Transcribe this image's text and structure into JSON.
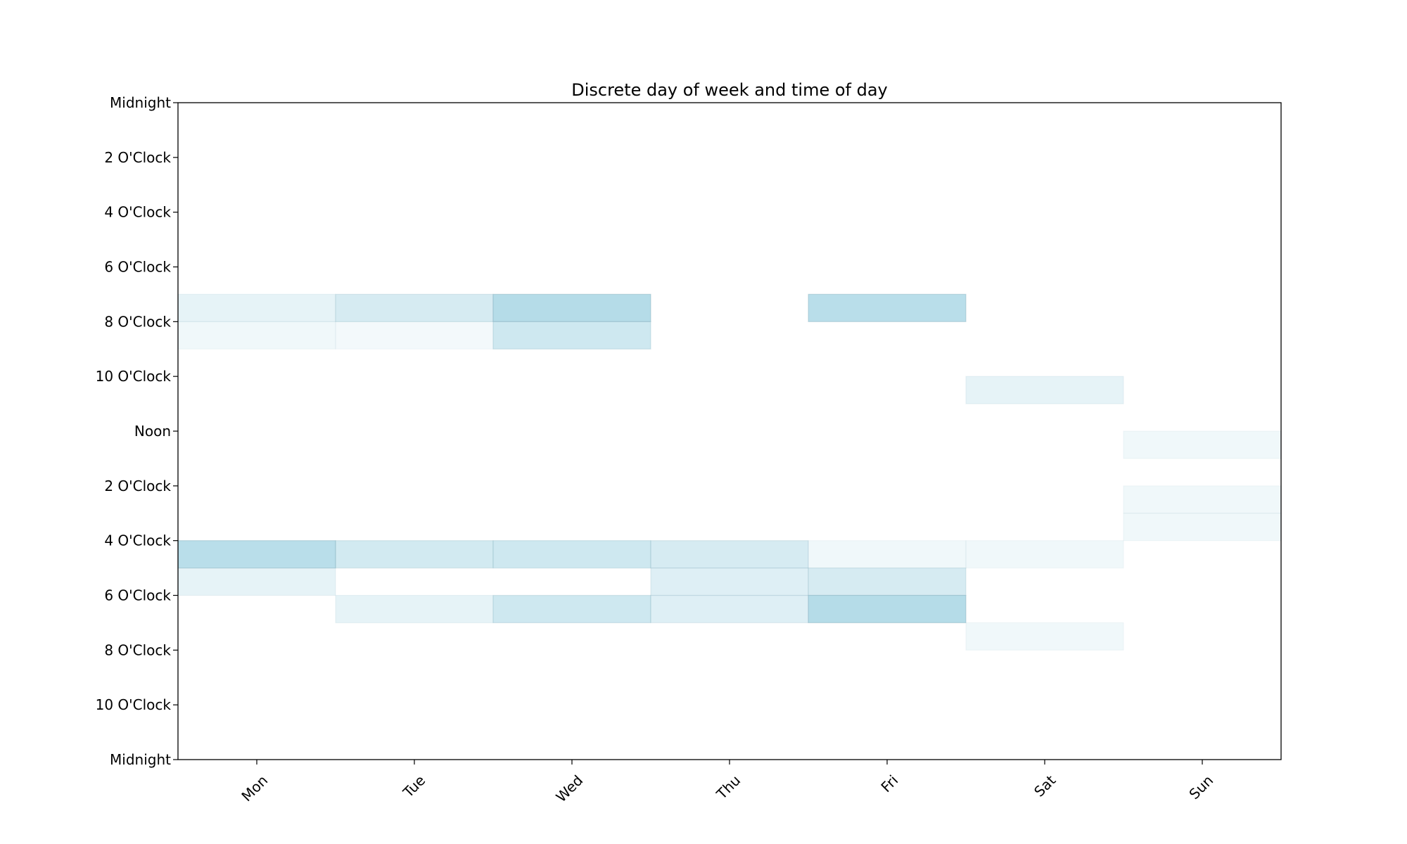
{
  "chart_data": {
    "type": "heatmap",
    "title": "Discrete day of week and time of day",
    "xlabel": "",
    "ylabel": "",
    "categories": [
      "Mon",
      "Tue",
      "Wed",
      "Thu",
      "Fri",
      "Sat",
      "Sun"
    ],
    "y_ticks": [
      "Midnight",
      "2 O'Clock",
      "4 O'Clock",
      "6 O'Clock",
      "8 O'Clock",
      "10 O'Clock",
      "Noon",
      "2 O'Clock",
      "4 O'Clock",
      "6 O'Clock",
      "8 O'Clock",
      "10 O'Clock",
      "Midnight"
    ],
    "ylim": [
      0,
      24
    ],
    "y_inverted": true,
    "color": "#add8e6",
    "grid": false,
    "cells": [
      {
        "day": "Mon",
        "hour": 7,
        "intensity": 0.3
      },
      {
        "day": "Mon",
        "hour": 8,
        "intensity": 0.18
      },
      {
        "day": "Mon",
        "hour": 16,
        "intensity": 0.85
      },
      {
        "day": "Mon",
        "hour": 17,
        "intensity": 0.3
      },
      {
        "day": "Tue",
        "hour": 7,
        "intensity": 0.5
      },
      {
        "day": "Tue",
        "hour": 8,
        "intensity": 0.15
      },
      {
        "day": "Tue",
        "hour": 16,
        "intensity": 0.55
      },
      {
        "day": "Tue",
        "hour": 18,
        "intensity": 0.3
      },
      {
        "day": "Wed",
        "hour": 7,
        "intensity": 0.9
      },
      {
        "day": "Wed",
        "hour": 8,
        "intensity": 0.6
      },
      {
        "day": "Wed",
        "hour": 16,
        "intensity": 0.6
      },
      {
        "day": "Wed",
        "hour": 18,
        "intensity": 0.6
      },
      {
        "day": "Thu",
        "hour": 16,
        "intensity": 0.5
      },
      {
        "day": "Thu",
        "hour": 17,
        "intensity": 0.4
      },
      {
        "day": "Thu",
        "hour": 18,
        "intensity": 0.4
      },
      {
        "day": "Fri",
        "hour": 7,
        "intensity": 0.85
      },
      {
        "day": "Fri",
        "hour": 16,
        "intensity": 0.18
      },
      {
        "day": "Fri",
        "hour": 17,
        "intensity": 0.5
      },
      {
        "day": "Fri",
        "hour": 18,
        "intensity": 0.9
      },
      {
        "day": "Sat",
        "hour": 10,
        "intensity": 0.3
      },
      {
        "day": "Sat",
        "hour": 16,
        "intensity": 0.18
      },
      {
        "day": "Sat",
        "hour": 19,
        "intensity": 0.18
      },
      {
        "day": "Sun",
        "hour": 12,
        "intensity": 0.18
      },
      {
        "day": "Sun",
        "hour": 14,
        "intensity": 0.18
      },
      {
        "day": "Sun",
        "hour": 15,
        "intensity": 0.18
      }
    ]
  }
}
